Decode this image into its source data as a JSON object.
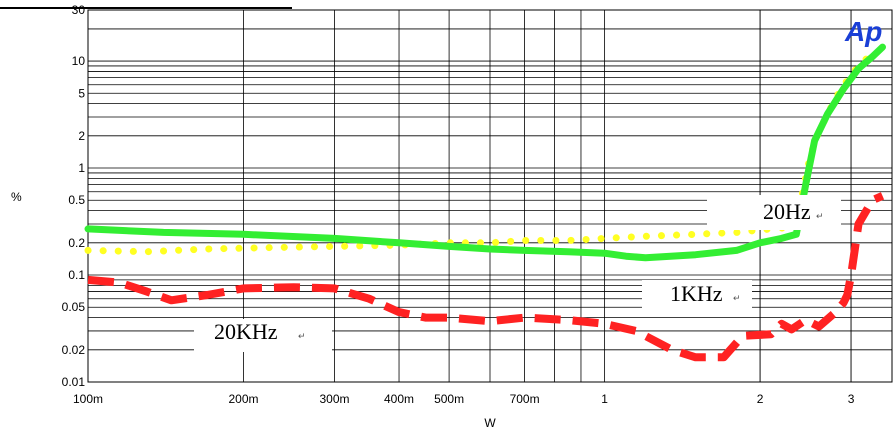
{
  "chart_data": {
    "type": "line",
    "title": "",
    "xlabel": "W",
    "ylabel": "%",
    "x_scale": "log",
    "y_scale": "log",
    "xlim": [
      0.1,
      3.6
    ],
    "ylim": [
      0.01,
      30
    ],
    "grid": true,
    "x_ticks": [
      {
        "value": 0.1,
        "label": "100m"
      },
      {
        "value": 0.2,
        "label": "200m"
      },
      {
        "value": 0.3,
        "label": "300m"
      },
      {
        "value": 0.4,
        "label": "400m"
      },
      {
        "value": 0.5,
        "label": "500m"
      },
      {
        "value": 0.7,
        "label": "700m"
      },
      {
        "value": 1,
        "label": "1"
      },
      {
        "value": 2,
        "label": "2"
      },
      {
        "value": 3,
        "label": "3"
      }
    ],
    "y_ticks": [
      {
        "value": 0.01,
        "label": "0.01"
      },
      {
        "value": 0.02,
        "label": "0.02"
      },
      {
        "value": 0.05,
        "label": "0.05"
      },
      {
        "value": 0.1,
        "label": "0.1"
      },
      {
        "value": 0.2,
        "label": "0.2"
      },
      {
        "value": 0.5,
        "label": "0.5"
      },
      {
        "value": 1,
        "label": "1"
      },
      {
        "value": 2,
        "label": "2"
      },
      {
        "value": 5,
        "label": "5"
      },
      {
        "value": 10,
        "label": "10"
      },
      {
        "value": 30,
        "label": "30"
      }
    ],
    "series": [
      {
        "name": "20Hz",
        "color": "#ffff22",
        "style": "dotted",
        "x": [
          0.1,
          0.13,
          0.17,
          0.22,
          0.3,
          0.4,
          0.5,
          0.6,
          0.7,
          0.85,
          1.0,
          1.2,
          1.5,
          1.8,
          2.1,
          2.3,
          2.4,
          2.5,
          2.6,
          2.8,
          3.0,
          3.3
        ],
        "y": [
          0.17,
          0.165,
          0.175,
          0.18,
          0.185,
          0.19,
          0.2,
          0.2,
          0.21,
          0.21,
          0.22,
          0.23,
          0.24,
          0.25,
          0.27,
          0.28,
          0.5,
          1.3,
          2.2,
          4.5,
          7.5,
          12
        ]
      },
      {
        "name": "1KHz",
        "color": "#33ee33",
        "style": "solid",
        "x": [
          0.1,
          0.14,
          0.2,
          0.3,
          0.4,
          0.5,
          0.6,
          0.7,
          0.85,
          1.0,
          1.1,
          1.2,
          1.5,
          1.8,
          2.0,
          2.2,
          2.35,
          2.45,
          2.55,
          2.7,
          2.9,
          3.1,
          3.3,
          3.45
        ],
        "y": [
          0.27,
          0.25,
          0.24,
          0.22,
          0.2,
          0.185,
          0.175,
          0.17,
          0.165,
          0.16,
          0.15,
          0.145,
          0.155,
          0.17,
          0.2,
          0.22,
          0.24,
          0.7,
          1.8,
          3.2,
          5.5,
          8.5,
          11,
          13.5
        ]
      },
      {
        "name": "20KHz",
        "color": "#ff2222",
        "style": "dashed",
        "x": [
          0.1,
          0.115,
          0.13,
          0.145,
          0.17,
          0.2,
          0.25,
          0.3,
          0.35,
          0.4,
          0.45,
          0.5,
          0.6,
          0.7,
          0.85,
          1.0,
          1.15,
          1.35,
          1.5,
          1.7,
          1.85,
          2.1,
          2.2,
          2.3,
          2.45,
          2.6,
          2.8,
          2.9,
          2.95,
          3.0,
          3.1,
          3.3,
          3.45
        ],
        "y": [
          0.09,
          0.085,
          0.07,
          0.058,
          0.065,
          0.075,
          0.077,
          0.075,
          0.06,
          0.045,
          0.04,
          0.04,
          0.037,
          0.04,
          0.038,
          0.035,
          0.03,
          0.02,
          0.017,
          0.017,
          0.027,
          0.028,
          0.035,
          0.031,
          0.038,
          0.033,
          0.045,
          0.055,
          0.065,
          0.1,
          0.3,
          0.5,
          0.55
        ]
      }
    ],
    "annotations": [
      {
        "text": "20Hz",
        "near": "yellow curve, right of center"
      },
      {
        "text": "1KHz",
        "near": "green curve, lower right"
      },
      {
        "text": "20KHz",
        "near": "red curve, lower left"
      }
    ]
  },
  "logo": {
    "text": "Ap",
    "color": "#1a3fd6"
  },
  "annotation_mark": "↵"
}
